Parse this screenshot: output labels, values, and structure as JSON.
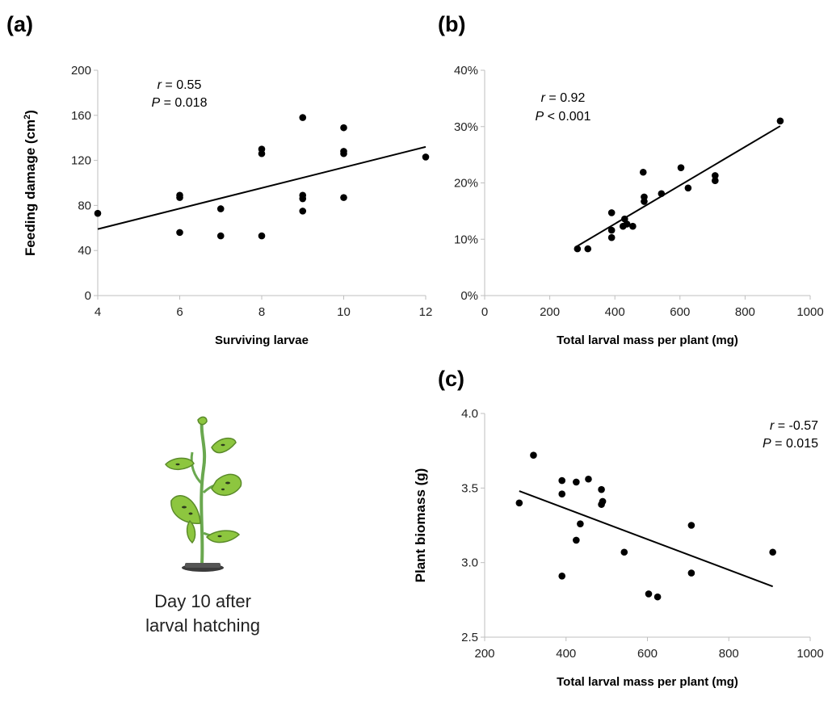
{
  "chart_data": [
    {
      "panel": "(a)",
      "type": "scatter",
      "xlabel": "Surviving larvae",
      "ylabel": "Feeding damage (cm²)",
      "xlim": [
        4,
        12
      ],
      "ylim": [
        0,
        200
      ],
      "x_ticks": [
        4,
        6,
        8,
        10,
        12
      ],
      "y_ticks": [
        0,
        40,
        80,
        120,
        160,
        200
      ],
      "x_tick_labels": [
        "4",
        "6",
        "8",
        "10",
        "12"
      ],
      "y_tick_labels": [
        "0",
        "40",
        "80",
        "120",
        "160",
        "200"
      ],
      "points": [
        {
          "x": 4,
          "y": 73
        },
        {
          "x": 6,
          "y": 89
        },
        {
          "x": 6,
          "y": 87
        },
        {
          "x": 6,
          "y": 56
        },
        {
          "x": 7,
          "y": 77
        },
        {
          "x": 7,
          "y": 53
        },
        {
          "x": 8,
          "y": 130
        },
        {
          "x": 8,
          "y": 126
        },
        {
          "x": 8,
          "y": 53
        },
        {
          "x": 9,
          "y": 158
        },
        {
          "x": 9,
          "y": 89
        },
        {
          "x": 9,
          "y": 86
        },
        {
          "x": 9,
          "y": 75
        },
        {
          "x": 10,
          "y": 149
        },
        {
          "x": 10,
          "y": 128
        },
        {
          "x": 10,
          "y": 126
        },
        {
          "x": 10,
          "y": 87
        },
        {
          "x": 12,
          "y": 123
        }
      ],
      "trendline": {
        "x": [
          4,
          12
        ],
        "y": [
          59,
          132
        ]
      },
      "stat_r": "0.55",
      "stat_p": "= 0.018"
    },
    {
      "panel": "(b)",
      "type": "scatter",
      "xlabel": "Total larval mass per plant (mg)",
      "ylabel": "",
      "xlim": [
        0,
        1000
      ],
      "ylim": [
        0,
        40
      ],
      "x_ticks": [
        0,
        200,
        400,
        600,
        800,
        1000
      ],
      "y_ticks": [
        0,
        10,
        20,
        30,
        40
      ],
      "x_tick_labels": [
        "0",
        "200",
        "400",
        "600",
        "800",
        "1000"
      ],
      "y_tick_labels": [
        "0%",
        "10%",
        "20%",
        "30%",
        "40%"
      ],
      "points": [
        {
          "x": 285,
          "y": 8.3
        },
        {
          "x": 317,
          "y": 8.3
        },
        {
          "x": 390,
          "y": 14.7
        },
        {
          "x": 390,
          "y": 11.6
        },
        {
          "x": 390,
          "y": 10.3
        },
        {
          "x": 425,
          "y": 12.3
        },
        {
          "x": 430,
          "y": 13.6
        },
        {
          "x": 437,
          "y": 12.7
        },
        {
          "x": 455,
          "y": 12.3
        },
        {
          "x": 487,
          "y": 21.9
        },
        {
          "x": 490,
          "y": 17.5
        },
        {
          "x": 490,
          "y": 16.7
        },
        {
          "x": 543,
          "y": 18.1
        },
        {
          "x": 603,
          "y": 22.7
        },
        {
          "x": 625,
          "y": 19.1
        },
        {
          "x": 708,
          "y": 21.3
        },
        {
          "x": 708,
          "y": 20.4
        },
        {
          "x": 908,
          "y": 31.0
        }
      ],
      "trendline": {
        "x": [
          285,
          908
        ],
        "y": [
          8.8,
          30.1
        ]
      },
      "stat_r": "0.92",
      "stat_p": "< 0.001"
    },
    {
      "panel": "(c)",
      "type": "scatter",
      "xlabel": "Total larval mass per plant (mg)",
      "ylabel": "Plant biomass (g)",
      "xlim": [
        200,
        1000
      ],
      "ylim": [
        2.5,
        4.0
      ],
      "x_ticks": [
        200,
        400,
        600,
        800,
        1000
      ],
      "y_ticks": [
        2.5,
        3.0,
        3.5,
        4.0
      ],
      "x_tick_labels": [
        "200",
        "400",
        "600",
        "800",
        "1000"
      ],
      "y_tick_labels": [
        "2.5",
        "3.0",
        "3.5",
        "4.0"
      ],
      "points": [
        {
          "x": 285,
          "y": 3.4
        },
        {
          "x": 320,
          "y": 3.72
        },
        {
          "x": 390,
          "y": 3.55
        },
        {
          "x": 390,
          "y": 3.46
        },
        {
          "x": 390,
          "y": 2.91
        },
        {
          "x": 425,
          "y": 3.54
        },
        {
          "x": 425,
          "y": 3.15
        },
        {
          "x": 435,
          "y": 3.26
        },
        {
          "x": 455,
          "y": 3.56
        },
        {
          "x": 487,
          "y": 3.49
        },
        {
          "x": 487,
          "y": 3.39
        },
        {
          "x": 490,
          "y": 3.41
        },
        {
          "x": 543,
          "y": 3.07
        },
        {
          "x": 603,
          "y": 2.79
        },
        {
          "x": 625,
          "y": 2.77
        },
        {
          "x": 708,
          "y": 3.25
        },
        {
          "x": 708,
          "y": 2.93
        },
        {
          "x": 908,
          "y": 3.07
        }
      ],
      "trendline": {
        "x": [
          285,
          908
        ],
        "y": [
          3.48,
          2.84
        ]
      },
      "stat_r": "-0.57",
      "stat_p": "= 0.015"
    }
  ],
  "caption": {
    "line1": "Day 10 after",
    "line2": "larval hatching"
  },
  "colors": {
    "point": "#000000",
    "axis": "#bfbfbf",
    "leaf": "#8dc63f",
    "leaf_dark": "#5a8a2a",
    "stem": "#6aa84f",
    "pot": "#3b3b3b"
  }
}
